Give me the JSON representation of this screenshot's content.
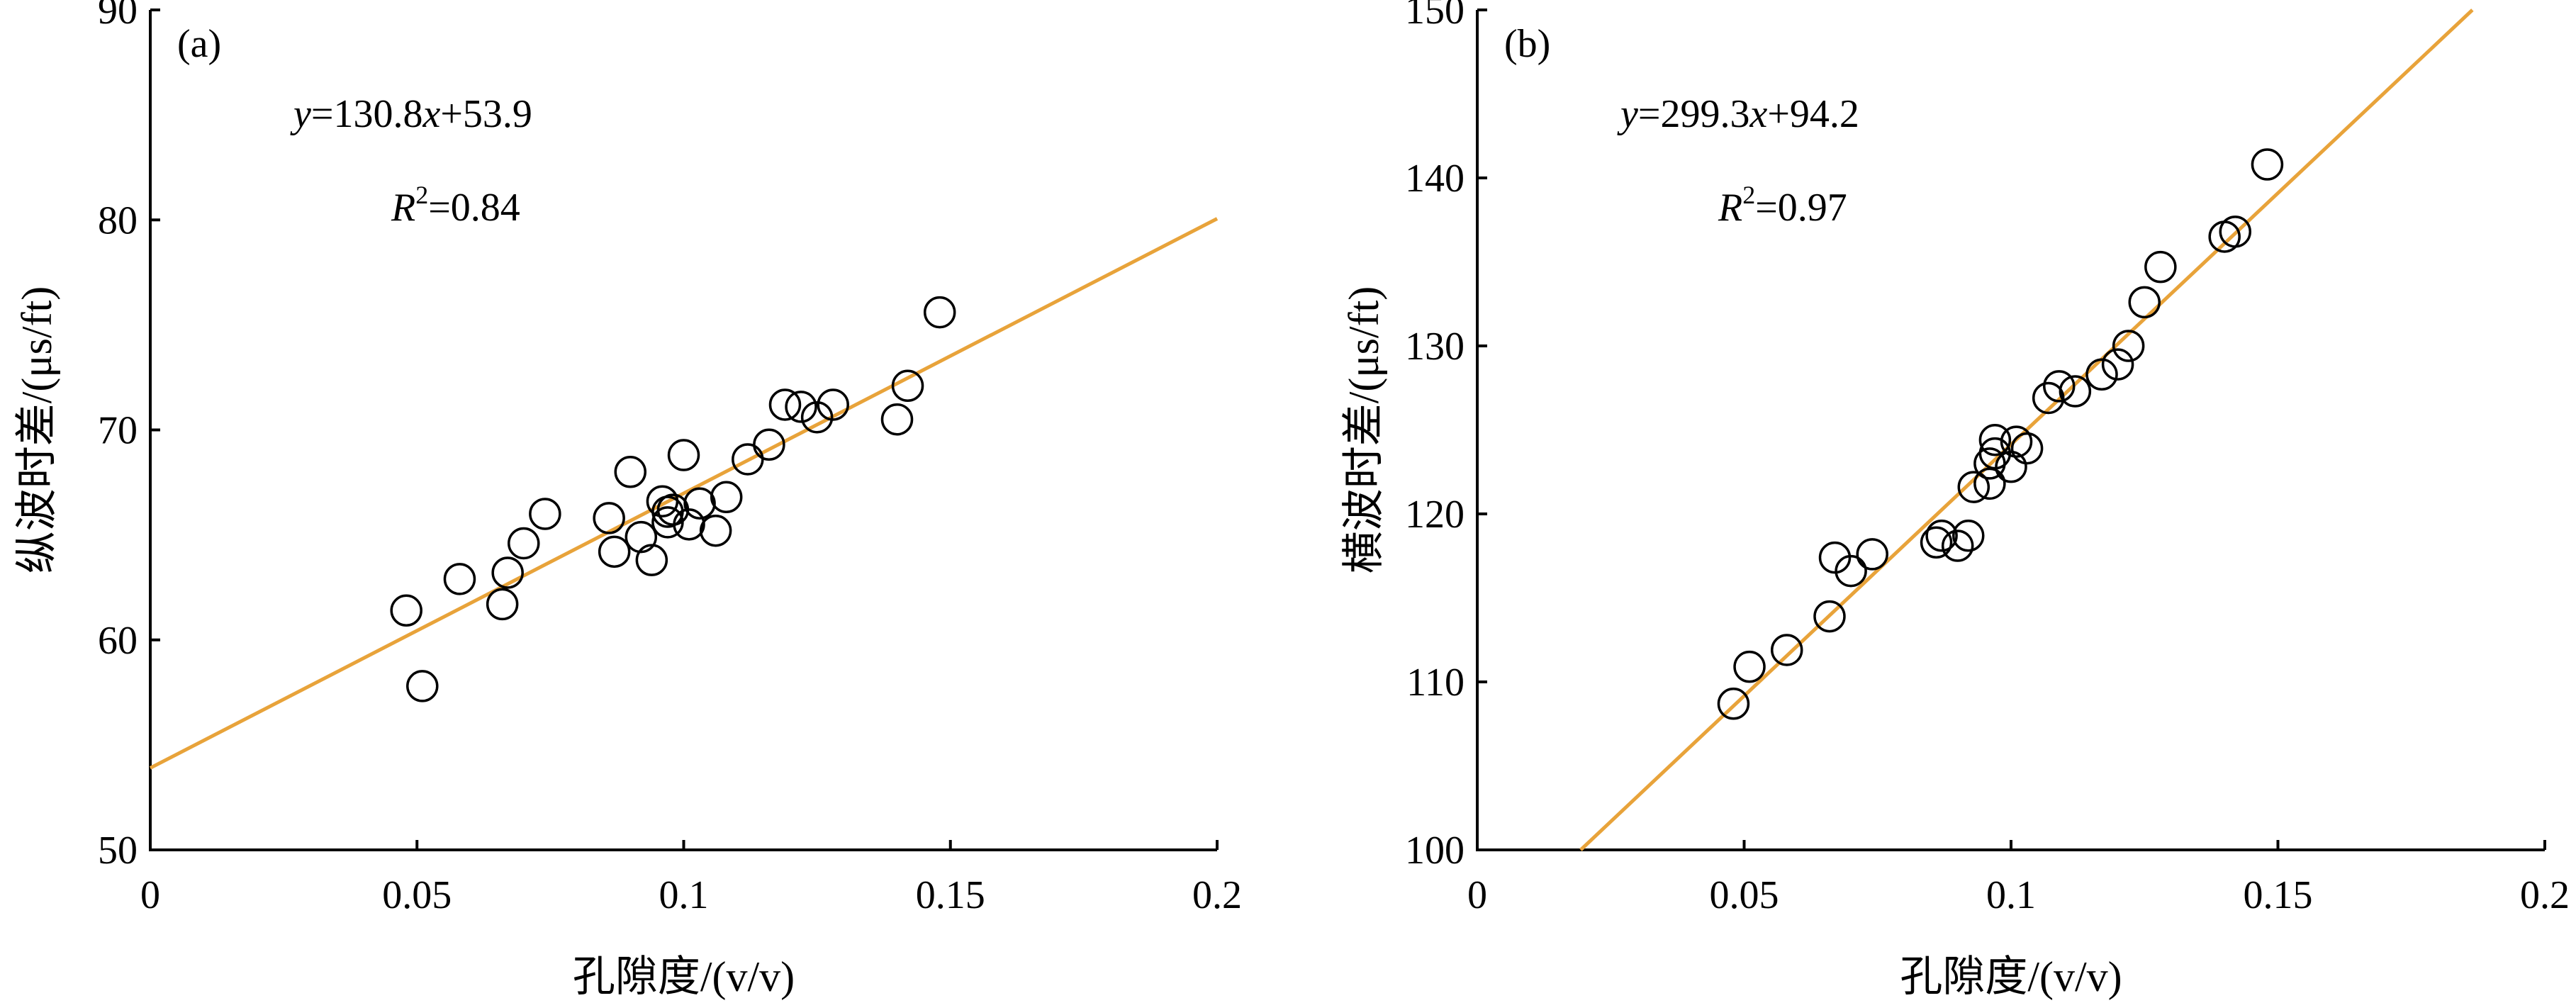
{
  "chart_data": [
    {
      "type": "scatter",
      "panel_label": "(a)",
      "xlabel": "孔隙度/(v/v)",
      "ylabel": "纵波时差/(μs/ft)",
      "xlim": [
        0,
        0.2
      ],
      "ylim": [
        50,
        90
      ],
      "xticks": [
        0,
        0.05,
        0.1,
        0.15,
        0.2
      ],
      "yticks": [
        50,
        60,
        70,
        80,
        90
      ],
      "xtick_labels": [
        "0",
        "0.05",
        "0.1",
        "0.15",
        "0.2"
      ],
      "ytick_labels": [
        "50",
        "60",
        "70",
        "80",
        "90"
      ],
      "equation": {
        "y": "y",
        "eq1": "=130.8",
        "x": "x",
        "eq2": "+53.9"
      },
      "r2": {
        "R": "R",
        "sup": "2",
        "val": "=0.84"
      },
      "fit": {
        "slope": 130.8,
        "intercept": 53.9
      },
      "marker_color": "#000000",
      "fit_color": "#E8A33A",
      "points": [
        [
          0.048,
          61.4
        ],
        [
          0.051,
          57.8
        ],
        [
          0.058,
          62.9
        ],
        [
          0.066,
          61.7
        ],
        [
          0.067,
          63.2
        ],
        [
          0.07,
          64.6
        ],
        [
          0.074,
          66.0
        ],
        [
          0.086,
          65.8
        ],
        [
          0.087,
          64.2
        ],
        [
          0.09,
          68.0
        ],
        [
          0.092,
          64.9
        ],
        [
          0.094,
          63.8
        ],
        [
          0.096,
          66.6
        ],
        [
          0.097,
          66.1
        ],
        [
          0.097,
          65.6
        ],
        [
          0.098,
          66.2
        ],
        [
          0.1,
          68.8
        ],
        [
          0.101,
          65.5
        ],
        [
          0.103,
          66.5
        ],
        [
          0.106,
          65.2
        ],
        [
          0.108,
          66.8
        ],
        [
          0.112,
          68.6
        ],
        [
          0.116,
          69.3
        ],
        [
          0.119,
          71.2
        ],
        [
          0.122,
          71.1
        ],
        [
          0.125,
          70.6
        ],
        [
          0.128,
          71.2
        ],
        [
          0.14,
          70.5
        ],
        [
          0.142,
          72.1
        ],
        [
          0.148,
          75.6
        ]
      ]
    },
    {
      "type": "scatter",
      "panel_label": "(b)",
      "xlabel": "孔隙度/(v/v)",
      "ylabel": "横波时差/(μs/ft)",
      "xlim": [
        0,
        0.2
      ],
      "ylim": [
        100,
        150
      ],
      "xticks": [
        0,
        0.05,
        0.1,
        0.15,
        0.2
      ],
      "yticks": [
        100,
        110,
        120,
        130,
        140,
        150
      ],
      "xtick_labels": [
        "0",
        "0.05",
        "0.1",
        "0.15",
        "0.2"
      ],
      "ytick_labels": [
        "100",
        "110",
        "120",
        "130",
        "140",
        "150"
      ],
      "equation": {
        "y": "y",
        "eq1": "=299.3",
        "x": "x",
        "eq2": "+94.2"
      },
      "r2": {
        "R": "R",
        "sup": "2",
        "val": "=0.97"
      },
      "fit": {
        "slope": 299.3,
        "intercept": 94.2
      },
      "marker_color": "#000000",
      "fit_color": "#E8A33A",
      "points": [
        [
          0.048,
          108.7
        ],
        [
          0.051,
          110.9
        ],
        [
          0.058,
          111.9
        ],
        [
          0.066,
          113.9
        ],
        [
          0.067,
          117.4
        ],
        [
          0.07,
          116.6
        ],
        [
          0.074,
          117.6
        ],
        [
          0.086,
          118.3
        ],
        [
          0.087,
          118.7
        ],
        [
          0.09,
          118.1
        ],
        [
          0.092,
          118.7
        ],
        [
          0.093,
          121.6
        ],
        [
          0.096,
          121.8
        ],
        [
          0.096,
          123.0
        ],
        [
          0.097,
          124.4
        ],
        [
          0.097,
          123.6
        ],
        [
          0.1,
          122.8
        ],
        [
          0.101,
          124.3
        ],
        [
          0.103,
          123.9
        ],
        [
          0.107,
          126.9
        ],
        [
          0.109,
          127.6
        ],
        [
          0.112,
          127.3
        ],
        [
          0.117,
          128.3
        ],
        [
          0.12,
          128.9
        ],
        [
          0.122,
          130.0
        ],
        [
          0.125,
          132.6
        ],
        [
          0.128,
          134.7
        ],
        [
          0.14,
          136.5
        ],
        [
          0.142,
          136.8
        ],
        [
          0.148,
          140.8
        ]
      ]
    }
  ]
}
